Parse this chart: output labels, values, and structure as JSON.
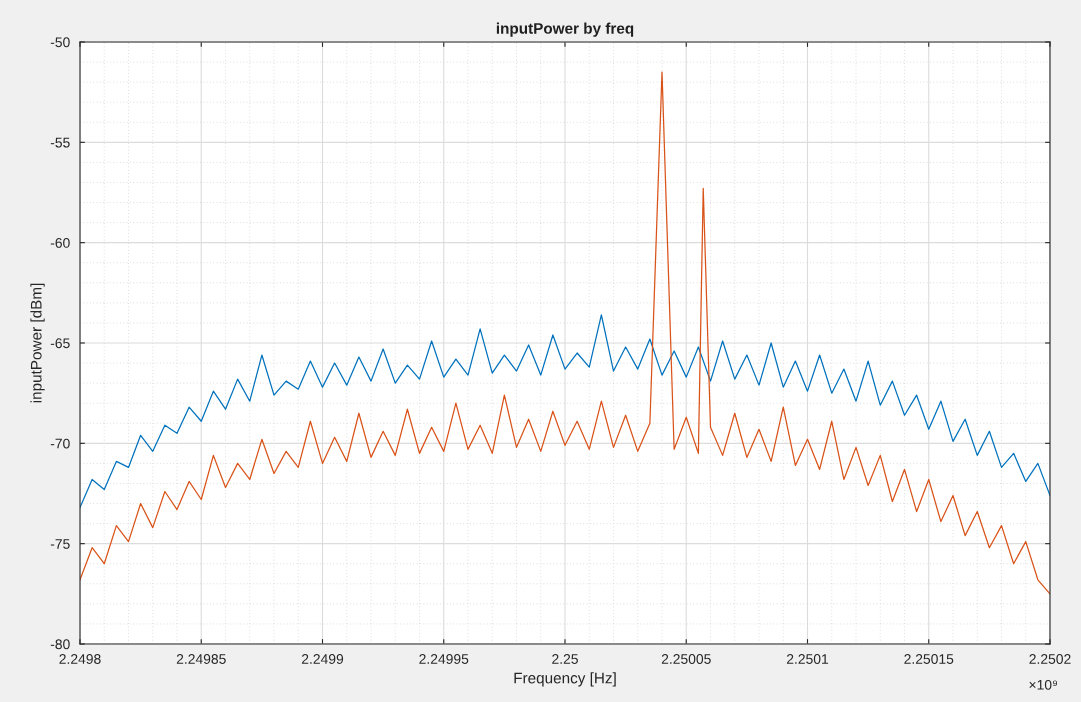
{
  "chart_data": {
    "type": "line",
    "title": "inputPower by freq",
    "xlabel": "Frequency [Hz]",
    "ylabel": "inputPower [dBm]",
    "xlim": [
      2.2498,
      2.2502
    ],
    "xticks": [
      2.2498,
      2.24985,
      2.2499,
      2.24995,
      2.25,
      2.25005,
      2.2501,
      2.25015,
      2.2502
    ],
    "ylim": [
      -80,
      -50
    ],
    "yticks": [
      -80,
      -75,
      -70,
      -65,
      -60,
      -55,
      -50
    ],
    "grid": true,
    "marker": "none",
    "line_style": "solid",
    "annotations": [
      "×10⁹"
    ],
    "series": [
      {
        "color": "#0072bd",
        "x": [
          2.2498,
          2.249805,
          2.24981,
          2.249815,
          2.24982,
          2.249825,
          2.24983,
          2.249835,
          2.24984,
          2.249845,
          2.24985,
          2.249855,
          2.24986,
          2.249865,
          2.24987,
          2.249875,
          2.24988,
          2.249885,
          2.24989,
          2.249895,
          2.2499,
          2.249905,
          2.24991,
          2.249915,
          2.24992,
          2.249925,
          2.24993,
          2.249935,
          2.24994,
          2.249945,
          2.24995,
          2.249955,
          2.24996,
          2.249965,
          2.24997,
          2.249975,
          2.24998,
          2.249985,
          2.24999,
          2.249995,
          2.25,
          2.250005,
          2.25001,
          2.250015,
          2.25002,
          2.250025,
          2.25003,
          2.250035,
          2.25004,
          2.250045,
          2.25005,
          2.250055,
          2.25006,
          2.250065,
          2.25007,
          2.250075,
          2.25008,
          2.250085,
          2.25009,
          2.250095,
          2.2501,
          2.250105,
          2.25011,
          2.250115,
          2.25012,
          2.250125,
          2.25013,
          2.250135,
          2.25014,
          2.250145,
          2.25015,
          2.250155,
          2.25016,
          2.250165,
          2.25017,
          2.250175,
          2.25018,
          2.250185,
          2.25019,
          2.250195,
          2.2502
        ],
        "values": [
          -73.2,
          -71.8,
          -72.3,
          -70.9,
          -71.2,
          -69.6,
          -70.4,
          -69.1,
          -69.5,
          -68.2,
          -68.9,
          -67.4,
          -68.3,
          -66.8,
          -67.9,
          -65.6,
          -67.6,
          -66.9,
          -67.3,
          -65.9,
          -67.2,
          -66.0,
          -67.1,
          -65.7,
          -66.9,
          -65.3,
          -67.0,
          -66.1,
          -66.8,
          -64.9,
          -66.7,
          -65.8,
          -66.6,
          -64.3,
          -66.5,
          -65.6,
          -66.4,
          -65.1,
          -66.6,
          -64.6,
          -66.3,
          -65.5,
          -66.2,
          -63.6,
          -66.4,
          -65.2,
          -66.3,
          -64.8,
          -66.6,
          -65.4,
          -66.7,
          -65.2,
          -66.9,
          -64.9,
          -66.8,
          -65.6,
          -67.1,
          -65.0,
          -67.2,
          -65.9,
          -67.4,
          -65.6,
          -67.5,
          -66.3,
          -67.9,
          -65.9,
          -68.1,
          -66.9,
          -68.6,
          -67.6,
          -69.3,
          -67.9,
          -69.9,
          -68.8,
          -70.6,
          -69.4,
          -71.2,
          -70.5,
          -71.9,
          -71.0,
          -72.6
        ]
      },
      {
        "color": "#d95319",
        "x": [
          2.2498,
          2.249805,
          2.24981,
          2.249815,
          2.24982,
          2.249825,
          2.24983,
          2.249835,
          2.24984,
          2.249845,
          2.24985,
          2.249855,
          2.24986,
          2.249865,
          2.24987,
          2.249875,
          2.24988,
          2.249885,
          2.24989,
          2.249895,
          2.2499,
          2.249905,
          2.24991,
          2.249915,
          2.24992,
          2.249925,
          2.24993,
          2.249935,
          2.24994,
          2.249945,
          2.24995,
          2.249955,
          2.24996,
          2.249965,
          2.24997,
          2.249975,
          2.24998,
          2.249985,
          2.24999,
          2.249995,
          2.25,
          2.250005,
          2.25001,
          2.250015,
          2.25002,
          2.250025,
          2.25003,
          2.250035,
          2.25004,
          2.250045,
          2.25005,
          2.250055,
          2.250057,
          2.25006,
          2.250065,
          2.25007,
          2.250075,
          2.25008,
          2.250085,
          2.25009,
          2.250095,
          2.2501,
          2.250105,
          2.25011,
          2.250115,
          2.25012,
          2.250125,
          2.25013,
          2.250135,
          2.25014,
          2.250145,
          2.25015,
          2.250155,
          2.25016,
          2.250165,
          2.25017,
          2.250175,
          2.25018,
          2.250185,
          2.25019,
          2.250195,
          2.2502
        ],
        "values": [
          -76.8,
          -75.2,
          -76.0,
          -74.1,
          -74.9,
          -73.0,
          -74.2,
          -72.4,
          -73.3,
          -71.9,
          -72.8,
          -70.6,
          -72.2,
          -71.0,
          -71.8,
          -69.8,
          -71.5,
          -70.4,
          -71.2,
          -68.9,
          -71.0,
          -69.7,
          -70.9,
          -68.5,
          -70.7,
          -69.4,
          -70.6,
          -68.3,
          -70.5,
          -69.2,
          -70.4,
          -68.0,
          -70.3,
          -69.1,
          -70.5,
          -67.6,
          -70.2,
          -68.8,
          -70.4,
          -68.4,
          -70.1,
          -68.9,
          -70.3,
          -67.9,
          -70.2,
          -68.6,
          -70.4,
          -69.0,
          -51.5,
          -70.3,
          -68.7,
          -70.5,
          -57.3,
          -69.2,
          -70.6,
          -68.5,
          -70.7,
          -69.3,
          -70.9,
          -68.2,
          -71.1,
          -69.8,
          -71.3,
          -68.9,
          -71.8,
          -70.2,
          -72.1,
          -70.6,
          -72.9,
          -71.3,
          -73.4,
          -71.8,
          -73.9,
          -72.6,
          -74.6,
          -73.4,
          -75.2,
          -74.1,
          -76.0,
          -74.9,
          -76.8,
          -77.5
        ]
      }
    ]
  }
}
